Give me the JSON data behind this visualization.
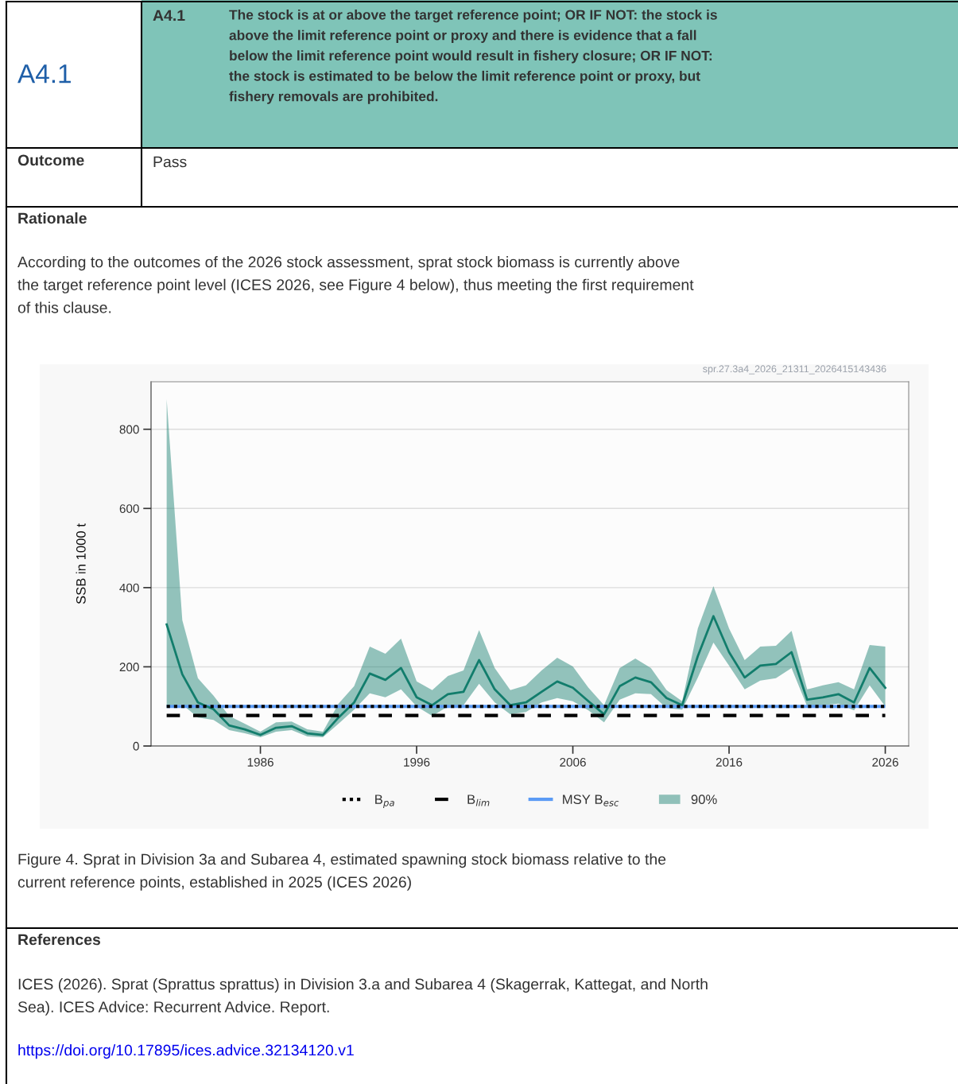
{
  "chart_data": {
    "type": "line",
    "x": [
      1980,
      1981,
      1982,
      1983,
      1984,
      1985,
      1986,
      1987,
      1988,
      1989,
      1990,
      1991,
      1992,
      1993,
      1994,
      1995,
      1996,
      1997,
      1998,
      1999,
      2000,
      2001,
      2002,
      2003,
      2004,
      2005,
      2006,
      2007,
      2008,
      2009,
      2010,
      2011,
      2012,
      2013,
      2014,
      2015,
      2016,
      2017,
      2018,
      2019,
      2020,
      2021,
      2022,
      2023,
      2024,
      2025,
      2026
    ],
    "series": [
      {
        "name": "90%",
        "color": "#127d6c",
        "values": [
          307,
          181,
          110,
          93,
          52,
          42,
          28,
          46,
          50,
          32,
          28,
          72,
          110,
          183,
          167,
          197,
          123,
          103,
          131,
          137,
          217,
          143,
          103,
          110,
          137,
          163,
          147,
          113,
          80,
          151,
          173,
          161,
          121,
          103,
          227,
          328,
          237,
          173,
          203,
          207,
          237,
          117,
          123,
          131,
          110,
          197,
          147
        ],
        "upper": [
          876,
          318,
          171,
          127,
          76,
          56,
          36,
          60,
          62,
          42,
          36,
          107,
          151,
          251,
          233,
          271,
          163,
          141,
          177,
          191,
          293,
          197,
          141,
          153,
          191,
          223,
          201,
          147,
          103,
          197,
          221,
          197,
          141,
          113,
          297,
          404,
          297,
          217,
          251,
          253,
          291,
          143,
          153,
          161,
          143,
          255,
          251
        ],
        "lower": [
          100,
          105,
          72,
          66,
          40,
          32,
          22,
          36,
          40,
          24,
          22,
          56,
          92,
          133,
          123,
          143,
          100,
          76,
          100,
          103,
          157,
          110,
          80,
          86,
          110,
          121,
          113,
          90,
          60,
          117,
          133,
          131,
          96,
          92,
          173,
          261,
          203,
          143,
          165,
          171,
          197,
          100,
          103,
          107,
          90,
          153,
          100
        ]
      }
    ],
    "ylabel": "SSB in 1000 t",
    "xlim": [
      1979,
      2027.5
    ],
    "ylim": [
      0,
      920
    ],
    "xticks": [
      1986,
      1996,
      2006,
      2016,
      2026
    ],
    "yticks": [
      0,
      200,
      400,
      600,
      800
    ],
    "grid": "y",
    "legend": "bottom",
    "marker": "none",
    "line_style": "solid",
    "ref_lines": [
      {
        "axis": "y",
        "value": 100,
        "label": "B$_{pa}$",
        "color": "#000000",
        "line_style": "dotted"
      },
      {
        "axis": "y",
        "value": 77,
        "label": "B$_{lim}$",
        "color": "#000000",
        "line_style": "dashed"
      },
      {
        "axis": "y",
        "value": 100,
        "label": "MSY B$_{esc}$",
        "color": "#5b9bf5",
        "line_style": "solid"
      }
    ],
    "annotations": [
      "A4.1",
      "A4.1",
      "The stock is at or above the target reference point; OR IF NOT: the stock is\nabove the limit reference point or proxy and there is evidence that a fall\nbelow the limit reference point would result in fishery closure; OR IF NOT:\nthe stock is estimated to be below the limit reference point or proxy, but\nfishery removals are prohibited.",
      "Outcome",
      "Pass",
      "Rationale",
      "According to the outcomes of the 2026 stock assessment, sprat stock biomass is currently above\nthe target reference point level (ICES 2026, see Figure 4 below), thus meeting the first requirement\nof this clause.",
      "spr.27.3a4_2026_21311_2026415143436",
      "Figure 4. Sprat in Division 3a and Subarea 4, estimated spawning stock biomass relative to the\ncurrent reference points, established in 2025 (ICES 2026)",
      "References",
      "ICES (2026). Sprat (Sprattus sprattus) in Division 3.a and Subarea 4 (Skagerrak, Kattegat, and North\nSea). ICES Advice: Recurrent Advice. Report.",
      "https://doi.org/10.17895/ices.advice.32134120.v1"
    ]
  }
}
